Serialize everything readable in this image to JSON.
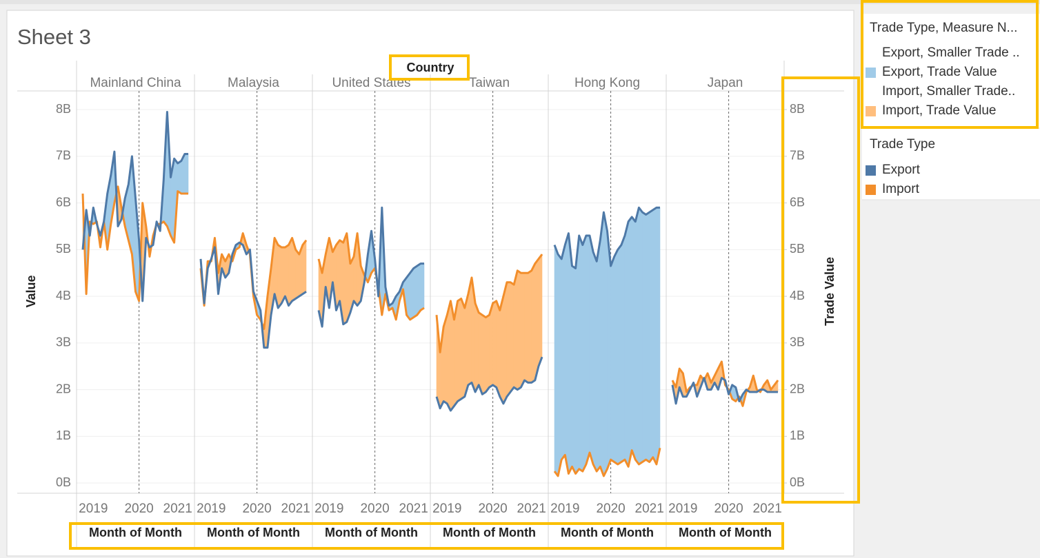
{
  "chart_data": {
    "type": "line",
    "title": "Sheet 3",
    "column_header": "Country",
    "y_label": "Value",
    "y2_label": "Trade Value",
    "x_label": "Month of Month",
    "categories": [
      null,
      null,
      null,
      "2019",
      null,
      null,
      null,
      null,
      null,
      null,
      null,
      null,
      null,
      null,
      null,
      null,
      "2020",
      null,
      null,
      null,
      null,
      null,
      null,
      null,
      null,
      null,
      null,
      "2021",
      null,
      null,
      null
    ],
    "ylim": [
      -0.22,
      8.4
    ],
    "yticks": [
      {
        "value": 0,
        "label": "0B"
      },
      {
        "value": 1,
        "label": "1B"
      },
      {
        "value": 2,
        "label": "2B"
      },
      {
        "value": 3,
        "label": "3B"
      },
      {
        "value": 4,
        "label": "4B"
      },
      {
        "value": 5,
        "label": "5B"
      },
      {
        "value": 6,
        "label": "6B"
      },
      {
        "value": 7,
        "label": "7B"
      },
      {
        "value": 8,
        "label": "8B"
      }
    ],
    "y2lim": [
      -0.22,
      8.4
    ],
    "y2ticks": [
      {
        "value": 0,
        "label": "0B"
      },
      {
        "value": 1,
        "label": "1B"
      },
      {
        "value": 2,
        "label": "2B"
      },
      {
        "value": 3,
        "label": "3B"
      },
      {
        "value": 4,
        "label": "4B"
      },
      {
        "value": 5,
        "label": "5B"
      },
      {
        "value": 6,
        "label": "6B"
      },
      {
        "value": 7,
        "label": "7B"
      },
      {
        "value": 8,
        "label": "8B"
      }
    ],
    "grid": true,
    "series": [
      {
        "name": "Export",
        "color": "#4e79a7"
      },
      {
        "name": "Import",
        "color": "#f28e2b"
      }
    ],
    "area_legend": {
      "title": "Trade Type, Measure N...",
      "entries": [
        {
          "label": "Export, Smaller Trade ..",
          "color": "#ffffff"
        },
        {
          "label": "Export, Trade Value",
          "color": "#a0cbe8"
        },
        {
          "label": "Import, Smaller Trade..",
          "color": "#ffffff"
        },
        {
          "label": "Import, Trade Value",
          "color": "#ffbe7d"
        }
      ]
    },
    "series_legend_title": "Trade Type",
    "panels": [
      {
        "name": "Mainland China",
        "series": [
          {
            "values": [
              5.0,
              5.85,
              5.3,
              5.9,
              5.55,
              5.3,
              5.6,
              6.2,
              6.6,
              7.1,
              5.5,
              5.65,
              6.1,
              6.4,
              7.0,
              6.1,
              5.2,
              3.9,
              5.25,
              5.05,
              5.1,
              5.6,
              5.4,
              6.5,
              7.95,
              6.55,
              6.95,
              6.85,
              6.9,
              7.05,
              7.05
            ]
          },
          {
            "values": [
              6.2,
              4.05,
              5.6,
              5.55,
              5.6,
              5.05,
              5.6,
              5.0,
              5.55,
              6.0,
              6.35,
              5.9,
              5.5,
              5.2,
              4.9,
              4.1,
              3.9,
              6.0,
              5.5,
              4.85,
              5.3,
              5.55,
              5.55,
              5.6,
              5.5,
              5.3,
              5.15,
              6.25,
              6.2,
              6.2,
              6.2
            ]
          }
        ]
      },
      {
        "name": "Malaysia",
        "series": [
          {
            "values": [
              4.8,
              3.85,
              4.6,
              4.8,
              5.05,
              4.05,
              4.6,
              4.4,
              4.5,
              4.9,
              5.1,
              5.15,
              5.1,
              4.9,
              5.0,
              4.1,
              3.9,
              3.7,
              2.9,
              2.9,
              3.6,
              4.05,
              3.75,
              3.85,
              4.0,
              3.8,
              3.9,
              3.95,
              4.0,
              4.05,
              4.1
            ]
          },
          {
            "values": [
              4.6,
              3.8,
              4.75,
              4.75,
              5.25,
              4.5,
              4.9,
              4.75,
              4.9,
              4.75,
              5.0,
              5.05,
              5.35,
              5.1,
              4.9,
              4.0,
              3.6,
              3.5,
              3.3,
              4.0,
              4.6,
              5.25,
              5.1,
              5.05,
              5.05,
              5.1,
              5.25,
              5.0,
              4.9,
              5.1,
              5.2
            ]
          }
        ]
      },
      {
        "name": "United States",
        "series": [
          {
            "values": [
              3.7,
              3.35,
              4.2,
              3.75,
              4.3,
              3.7,
              3.9,
              3.4,
              3.45,
              3.65,
              3.9,
              3.8,
              3.9,
              4.3,
              4.9,
              5.4,
              4.8,
              4.0,
              5.9,
              4.2,
              3.8,
              3.85,
              4.0,
              4.1,
              4.3,
              4.4,
              4.5,
              4.6,
              4.65,
              4.7,
              4.7
            ]
          },
          {
            "values": [
              4.8,
              4.5,
              4.9,
              5.25,
              4.95,
              5.1,
              5.2,
              5.15,
              5.35,
              4.7,
              4.85,
              5.35,
              4.65,
              4.45,
              4.3,
              4.5,
              4.6,
              4.2,
              3.6,
              4.05,
              3.7,
              3.75,
              3.5,
              3.9,
              4.15,
              3.6,
              3.5,
              3.55,
              3.6,
              3.7,
              3.75
            ]
          }
        ]
      },
      {
        "name": "Taiwan",
        "series": [
          {
            "values": [
              1.85,
              1.6,
              1.75,
              1.7,
              1.55,
              1.65,
              1.75,
              1.8,
              1.85,
              2.1,
              2.15,
              1.95,
              2.1,
              1.9,
              1.95,
              2.05,
              2.1,
              2.05,
              1.85,
              1.7,
              1.85,
              1.95,
              2.05,
              2.0,
              2.05,
              2.2,
              2.15,
              2.15,
              2.2,
              2.5,
              2.7
            ]
          },
          {
            "values": [
              3.6,
              2.8,
              3.35,
              3.6,
              3.9,
              3.5,
              3.9,
              3.95,
              3.75,
              4.05,
              4.4,
              3.85,
              3.65,
              3.6,
              3.55,
              3.6,
              3.85,
              3.9,
              3.7,
              4.0,
              4.3,
              4.3,
              4.25,
              4.55,
              4.5,
              4.5,
              4.5,
              4.55,
              4.7,
              4.8,
              4.9
            ]
          }
        ]
      },
      {
        "name": "Hong Kong",
        "series": [
          {
            "values": [
              5.1,
              4.9,
              4.8,
              5.1,
              5.35,
              4.65,
              4.6,
              5.3,
              5.1,
              5.3,
              5.3,
              4.95,
              4.75,
              5.2,
              5.8,
              5.4,
              4.65,
              4.85,
              5.0,
              5.1,
              5.3,
              5.6,
              5.7,
              5.6,
              5.9,
              5.8,
              5.75,
              5.8,
              5.85,
              5.9,
              5.9
            ]
          },
          {
            "values": [
              0.25,
              0.15,
              0.5,
              0.6,
              0.2,
              0.35,
              0.2,
              0.3,
              0.25,
              0.4,
              0.65,
              0.4,
              0.25,
              0.35,
              0.15,
              0.3,
              0.5,
              0.45,
              0.4,
              0.45,
              0.5,
              0.35,
              0.7,
              0.5,
              0.4,
              0.45,
              0.5,
              0.45,
              0.55,
              0.4,
              0.75
            ]
          }
        ]
      },
      {
        "name": "Japan",
        "series": [
          {
            "values": [
              2.1,
              1.7,
              2.05,
              1.85,
              1.85,
              2.0,
              2.15,
              1.85,
              2.05,
              2.25,
              2.0,
              2.0,
              2.15,
              2.0,
              2.25,
              2.2,
              1.9,
              2.1,
              2.05,
              1.75,
              1.9,
              2.0,
              1.95,
              1.95,
              1.95,
              2.0,
              2.0,
              1.95,
              1.95,
              1.95,
              1.95
            ]
          },
          {
            "values": [
              2.2,
              2.05,
              2.45,
              2.35,
              1.95,
              2.05,
              2.1,
              2.1,
              2.3,
              2.2,
              2.35,
              2.15,
              2.3,
              2.45,
              2.6,
              2.1,
              2.0,
              1.8,
              1.75,
              1.85,
              1.65,
              1.95,
              2.05,
              2.3,
              2.0,
              1.95,
              2.1,
              2.2,
              2.0,
              2.1,
              2.2
            ]
          }
        ]
      }
    ]
  }
}
